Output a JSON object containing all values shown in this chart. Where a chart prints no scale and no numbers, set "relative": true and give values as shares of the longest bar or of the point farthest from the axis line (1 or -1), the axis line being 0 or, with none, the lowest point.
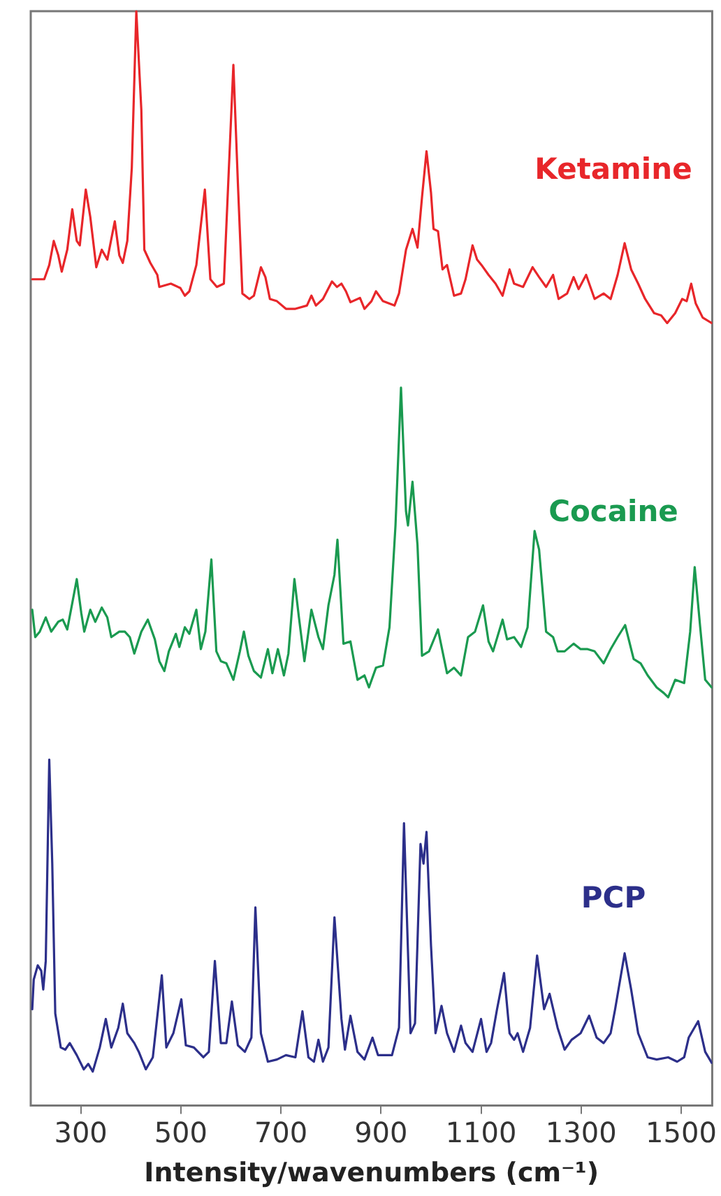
{
  "chart_data": {
    "type": "line",
    "xlabel": "Intensity/wavenumbers (cm⁻¹)",
    "relative": true,
    "xlim": [
      200,
      1562
    ],
    "xticks": [
      300,
      500,
      700,
      900,
      1100,
      1300,
      1500
    ],
    "grid": false,
    "legend": false,
    "marker": "none",
    "line_style": "solid",
    "series": [
      {
        "name": "Ketamine",
        "color": "#e8262a",
        "x": [
          203,
          227,
          237,
          246,
          255,
          262,
          273,
          283,
          292,
          298,
          310,
          319,
          331,
          342,
          353,
          368,
          377,
          384,
          393,
          402,
          411,
          421,
          427,
          439,
          453,
          457,
          480,
          499,
          508,
          517,
          531,
          548,
          559,
          572,
          586,
          605,
          614,
          623,
          637,
          646,
          660,
          669,
          678,
          692,
          710,
          729,
          752,
          761,
          770,
          784,
          802,
          812,
          821,
          830,
          839,
          858,
          867,
          881,
          890,
          904,
          927,
          936,
          950,
          963,
          973,
          982,
          991,
          1000,
          1005,
          1014,
          1023,
          1032,
          1046,
          1060,
          1069,
          1083,
          1092,
          1101,
          1115,
          1129,
          1143,
          1157,
          1166,
          1184,
          1203,
          1216,
          1230,
          1244,
          1255,
          1272,
          1285,
          1295,
          1310,
          1327,
          1345,
          1359,
          1373,
          1387,
          1400,
          1414,
          1428,
          1446,
          1460,
          1472,
          1488,
          1502,
          1511,
          1520,
          1529,
          1543,
          1561
        ],
        "values": [
          0.755,
          0.755,
          0.768,
          0.79,
          0.777,
          0.762,
          0.782,
          0.819,
          0.79,
          0.786,
          0.837,
          0.812,
          0.766,
          0.782,
          0.773,
          0.808,
          0.777,
          0.77,
          0.79,
          0.857,
          1.0,
          0.91,
          0.782,
          0.77,
          0.759,
          0.748,
          0.751,
          0.747,
          0.74,
          0.744,
          0.768,
          0.837,
          0.755,
          0.748,
          0.751,
          0.951,
          0.843,
          0.742,
          0.737,
          0.74,
          0.766,
          0.757,
          0.737,
          0.735,
          0.728,
          0.728,
          0.731,
          0.74,
          0.731,
          0.737,
          0.753,
          0.748,
          0.751,
          0.744,
          0.734,
          0.738,
          0.728,
          0.735,
          0.744,
          0.735,
          0.731,
          0.742,
          0.782,
          0.801,
          0.784,
          0.83,
          0.872,
          0.834,
          0.801,
          0.799,
          0.764,
          0.768,
          0.74,
          0.742,
          0.755,
          0.786,
          0.773,
          0.768,
          0.759,
          0.751,
          0.74,
          0.764,
          0.751,
          0.748,
          0.766,
          0.757,
          0.748,
          0.759,
          0.737,
          0.742,
          0.757,
          0.746,
          0.759,
          0.737,
          0.742,
          0.737,
          0.759,
          0.788,
          0.764,
          0.751,
          0.737,
          0.724,
          0.722,
          0.715,
          0.724,
          0.737,
          0.735,
          0.751,
          0.733,
          0.72,
          0.715
        ]
      },
      {
        "name": "Cocaine",
        "color": "#1a9a50",
        "x": [
          203,
          209,
          218,
          230,
          241,
          255,
          264,
          273,
          283,
          292,
          301,
          307,
          319,
          329,
          342,
          353,
          361,
          377,
          388,
          398,
          407,
          421,
          434,
          448,
          457,
          467,
          476,
          490,
          497,
          508,
          517,
          531,
          540,
          549,
          561,
          571,
          580,
          591,
          605,
          618,
          626,
          635,
          646,
          660,
          674,
          683,
          694,
          706,
          715,
          727,
          736,
          747,
          761,
          775,
          784,
          795,
          807,
          813,
          825,
          839,
          853,
          867,
          876,
          890,
          904,
          917,
          929,
          940,
          950,
          954,
          963,
          973,
          982,
          996,
          1014,
          1023,
          1032,
          1046,
          1060,
          1074,
          1088,
          1104,
          1115,
          1124,
          1143,
          1152,
          1166,
          1180,
          1193,
          1207,
          1216,
          1230,
          1244,
          1253,
          1267,
          1285,
          1299,
          1313,
          1327,
          1345,
          1359,
          1373,
          1388,
          1405,
          1419,
          1433,
          1451,
          1465,
          1474,
          1488,
          1506,
          1518,
          1527,
          1538,
          1548,
          1561
        ],
        "values": [
          0.453,
          0.428,
          0.433,
          0.446,
          0.433,
          0.442,
          0.444,
          0.435,
          0.459,
          0.481,
          0.45,
          0.433,
          0.453,
          0.442,
          0.455,
          0.446,
          0.428,
          0.433,
          0.433,
          0.428,
          0.413,
          0.433,
          0.444,
          0.426,
          0.406,
          0.397,
          0.415,
          0.431,
          0.419,
          0.437,
          0.431,
          0.453,
          0.417,
          0.433,
          0.499,
          0.415,
          0.406,
          0.404,
          0.389,
          0.415,
          0.433,
          0.411,
          0.397,
          0.391,
          0.417,
          0.395,
          0.417,
          0.393,
          0.413,
          0.481,
          0.446,
          0.406,
          0.453,
          0.428,
          0.417,
          0.457,
          0.485,
          0.517,
          0.422,
          0.424,
          0.389,
          0.393,
          0.382,
          0.4,
          0.402,
          0.437,
          0.53,
          0.656,
          0.543,
          0.53,
          0.57,
          0.512,
          0.411,
          0.415,
          0.435,
          0.415,
          0.395,
          0.4,
          0.393,
          0.428,
          0.433,
          0.457,
          0.424,
          0.415,
          0.444,
          0.426,
          0.428,
          0.419,
          0.437,
          0.525,
          0.508,
          0.433,
          0.428,
          0.415,
          0.415,
          0.422,
          0.417,
          0.417,
          0.415,
          0.404,
          0.417,
          0.428,
          0.439,
          0.408,
          0.404,
          0.393,
          0.382,
          0.377,
          0.373,
          0.389,
          0.386,
          0.433,
          0.492,
          0.437,
          0.389,
          0.382
        ]
      },
      {
        "name": "PCP",
        "color": "#2c2f8a",
        "x": [
          203,
          206,
          214,
          221,
          225,
          230,
          237,
          243,
          249,
          260,
          269,
          278,
          292,
          306,
          315,
          324,
          338,
          350,
          361,
          375,
          384,
          393,
          407,
          416,
          430,
          444,
          462,
          471,
          485,
          501,
          510,
          526,
          545,
          556,
          568,
          580,
          591,
          602,
          614,
          628,
          641,
          649,
          660,
          674,
          692,
          710,
          729,
          743,
          755,
          766,
          775,
          784,
          795,
          807,
          821,
          828,
          839,
          853,
          867,
          883,
          894,
          922,
          936,
          946,
          959,
          968,
          979,
          985,
          991,
          1000,
          1009,
          1021,
          1032,
          1046,
          1060,
          1069,
          1083,
          1100,
          1111,
          1120,
          1132,
          1146,
          1157,
          1166,
          1173,
          1184,
          1198,
          1212,
          1226,
          1237,
          1253,
          1267,
          1281,
          1299,
          1316,
          1331,
          1345,
          1359,
          1368,
          1387,
          1400,
          1414,
          1433,
          1451,
          1474,
          1492,
          1506,
          1515,
          1534,
          1548,
          1561
        ],
        "values": [
          0.088,
          0.115,
          0.128,
          0.123,
          0.106,
          0.132,
          0.316,
          0.221,
          0.084,
          0.053,
          0.051,
          0.057,
          0.046,
          0.033,
          0.038,
          0.031,
          0.053,
          0.079,
          0.053,
          0.071,
          0.093,
          0.066,
          0.057,
          0.049,
          0.033,
          0.044,
          0.119,
          0.053,
          0.066,
          0.097,
          0.055,
          0.053,
          0.044,
          0.049,
          0.132,
          0.057,
          0.057,
          0.095,
          0.055,
          0.049,
          0.062,
          0.181,
          0.066,
          0.04,
          0.042,
          0.046,
          0.044,
          0.086,
          0.044,
          0.04,
          0.06,
          0.04,
          0.053,
          0.172,
          0.079,
          0.051,
          0.082,
          0.049,
          0.042,
          0.062,
          0.046,
          0.046,
          0.071,
          0.258,
          0.066,
          0.075,
          0.239,
          0.221,
          0.25,
          0.146,
          0.066,
          0.091,
          0.066,
          0.049,
          0.073,
          0.057,
          0.049,
          0.079,
          0.049,
          0.057,
          0.088,
          0.121,
          0.066,
          0.06,
          0.066,
          0.049,
          0.071,
          0.137,
          0.088,
          0.102,
          0.071,
          0.051,
          0.06,
          0.066,
          0.082,
          0.062,
          0.057,
          0.066,
          0.088,
          0.139,
          0.106,
          0.066,
          0.044,
          0.042,
          0.044,
          0.04,
          0.044,
          0.062,
          0.077,
          0.049,
          0.039
        ]
      }
    ]
  }
}
